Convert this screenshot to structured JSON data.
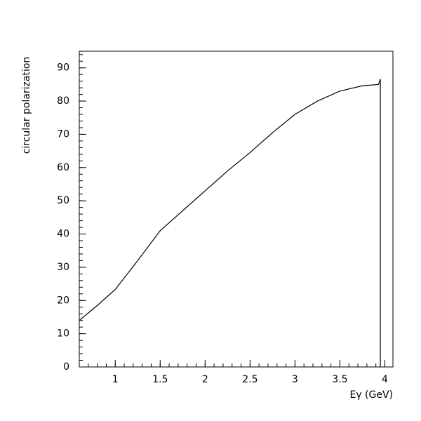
{
  "chart_data": {
    "type": "line",
    "x_label": "Eγ (GeV)",
    "y_label": "circular polarization",
    "x": [
      0.6,
      0.8,
      1,
      1.25,
      1.5,
      1.75,
      2,
      2.25,
      2.5,
      2.75,
      3,
      3.25,
      3.5,
      3.75,
      3.93,
      3.95,
      3.95
    ],
    "series": [
      {
        "name": "circular polarization",
        "color": "#000000",
        "values": [
          14,
          18.5,
          23.3,
          32,
          41,
          47,
          53,
          59,
          64.5,
          70.5,
          76,
          80,
          83,
          84.6,
          85,
          86.6,
          0
        ]
      }
    ],
    "xlim": [
      0.6,
      4.09
    ],
    "ylim": [
      0,
      95
    ],
    "xticks": [
      1,
      1.5,
      2,
      2.5,
      3,
      3.5,
      4
    ],
    "yticks": [
      0,
      10,
      20,
      30,
      40,
      50,
      60,
      70,
      80,
      90
    ]
  }
}
